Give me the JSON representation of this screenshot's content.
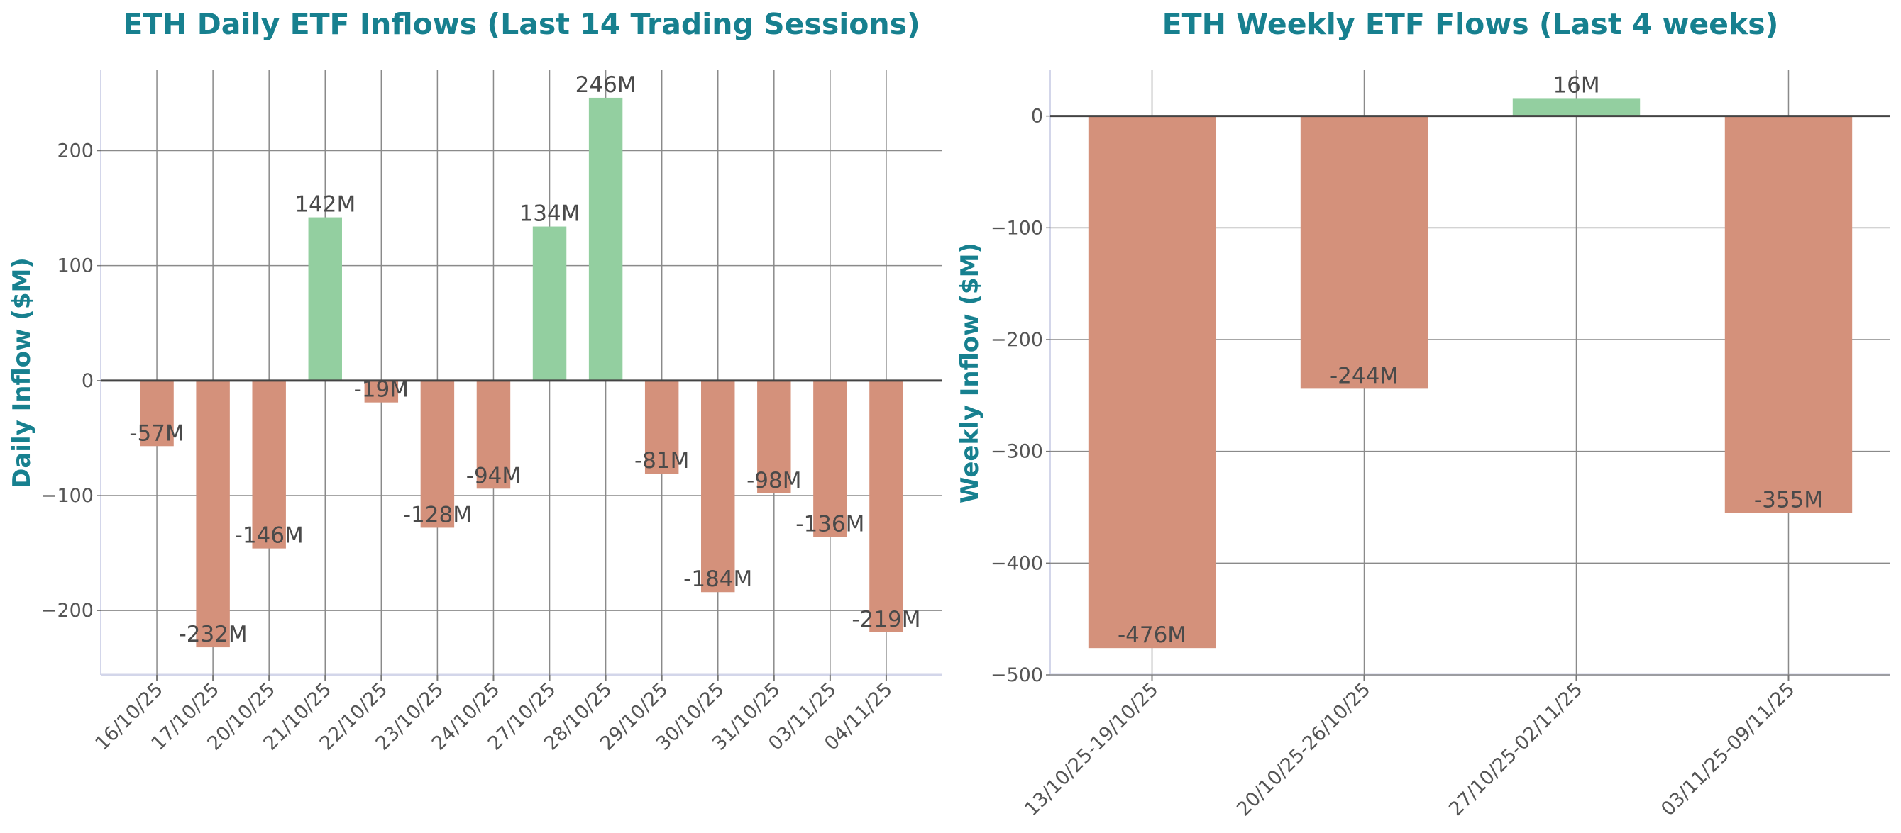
{
  "chart_data": [
    {
      "type": "bar",
      "title": "ETH Daily ETF Inflows (Last 14 Trading Sessions)",
      "xlabel": "",
      "ylabel": "Daily Inflow ($M)",
      "categories": [
        "16/10/25",
        "17/10/25",
        "20/10/25",
        "21/10/25",
        "22/10/25",
        "23/10/25",
        "24/10/25",
        "27/10/25",
        "28/10/25",
        "29/10/25",
        "30/10/25",
        "31/10/25",
        "03/11/25",
        "04/11/25"
      ],
      "values": [
        -57,
        -232,
        -146,
        142,
        -19,
        -128,
        -94,
        134,
        246,
        -81,
        -184,
        -98,
        -136,
        -219
      ],
      "data_labels": [
        "-57M",
        "-232M",
        "-146M",
        "142M",
        "-19M",
        "-128M",
        "-94M",
        "134M",
        "246M",
        "-81M",
        "-184M",
        "-98M",
        "-136M",
        "-219M"
      ],
      "ylim": [
        -256,
        270
      ],
      "yticks": [
        -200,
        -100,
        0,
        100,
        200
      ],
      "ytick_labels": [
        "−200",
        "−100",
        "0",
        "100",
        "200"
      ],
      "grid": true,
      "colors": {
        "positive": "#93cfa0",
        "negative": "#d4917b",
        "title": "#17808f"
      }
    },
    {
      "type": "bar",
      "title": "ETH Weekly ETF Flows (Last 4 weeks)",
      "xlabel": "",
      "ylabel": "Weekly Inflow ($M)",
      "categories": [
        "13/10/25-19/10/25",
        "20/10/25-26/10/25",
        "27/10/25-02/11/25",
        "03/11/25-09/11/25"
      ],
      "values": [
        -476,
        -244,
        16,
        -355
      ],
      "data_labels": [
        "-476M",
        "-244M",
        "16M",
        "-355M"
      ],
      "ylim": [
        -500,
        41
      ],
      "yticks": [
        -500,
        -400,
        -300,
        -200,
        -100,
        0
      ],
      "ytick_labels": [
        "−500",
        "−400",
        "−300",
        "−200",
        "−100",
        "0"
      ],
      "grid": true,
      "colors": {
        "positive": "#93cfa0",
        "negative": "#d4917b",
        "title": "#17808f"
      }
    }
  ]
}
